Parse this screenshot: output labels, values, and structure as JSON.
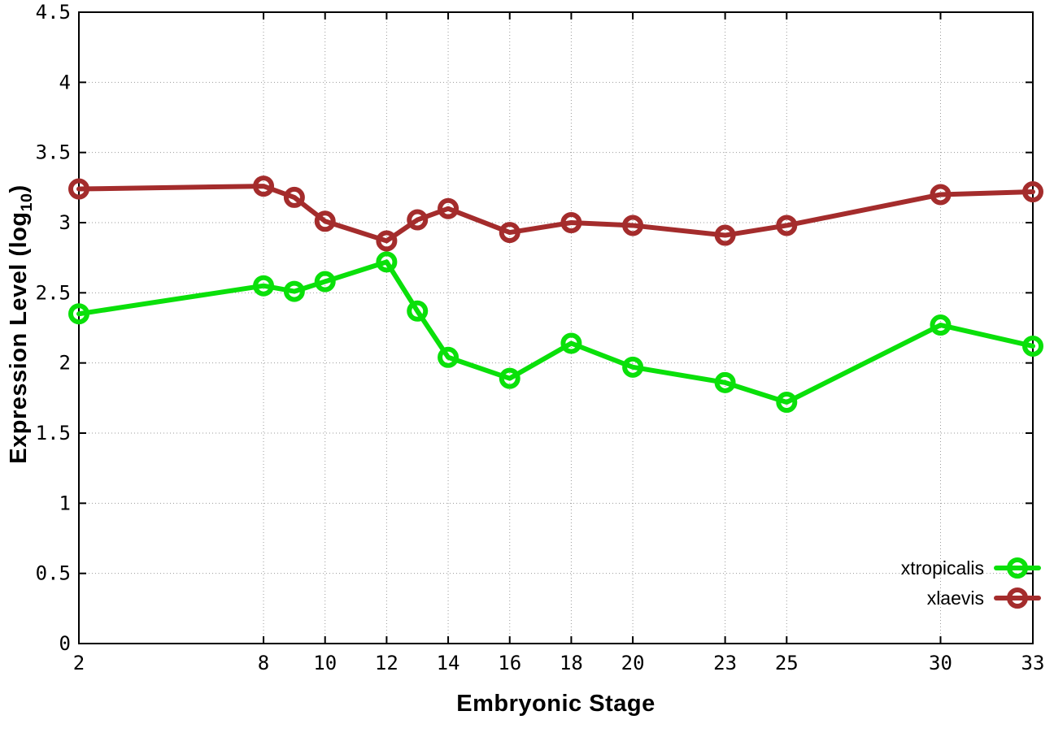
{
  "figure": {
    "background": "#ffffff",
    "border_color": "#000000",
    "grid_color": "#9a9a9a",
    "tick_color": "#000000",
    "tick_label_color": "#000000"
  },
  "chart_data": {
    "type": "line",
    "title": "",
    "xlabel": "Embryonic Stage",
    "ylabel": {
      "prefix": "Expression Level (log",
      "sub": "10",
      "suffix": ")"
    },
    "xlim": [
      2,
      33
    ],
    "ylim": [
      0,
      4.5
    ],
    "x_ticks": [
      2,
      8,
      10,
      12,
      14,
      16,
      18,
      20,
      23,
      25,
      30,
      33
    ],
    "y_ticks": [
      0,
      0.5,
      1,
      1.5,
      2,
      2.5,
      3,
      3.5,
      4,
      4.5
    ],
    "grid": true,
    "legend_position": "inside bottom right",
    "marker": "open-circle",
    "x": [
      2,
      8,
      9,
      10,
      12,
      13,
      14,
      16,
      18,
      20,
      23,
      25,
      30,
      33
    ],
    "series": [
      {
        "name": "xtropicalis",
        "color": "#0ae00a",
        "values": [
          2.35,
          2.55,
          2.51,
          2.58,
          2.72,
          2.37,
          2.04,
          1.89,
          2.14,
          1.97,
          1.86,
          1.72,
          2.27,
          2.12
        ]
      },
      {
        "name": "xlaevis",
        "color": "#a42c2c",
        "values": [
          3.24,
          3.26,
          3.18,
          3.01,
          2.87,
          3.02,
          3.1,
          2.93,
          3.0,
          2.98,
          2.91,
          2.98,
          3.2,
          3.22
        ]
      }
    ]
  }
}
